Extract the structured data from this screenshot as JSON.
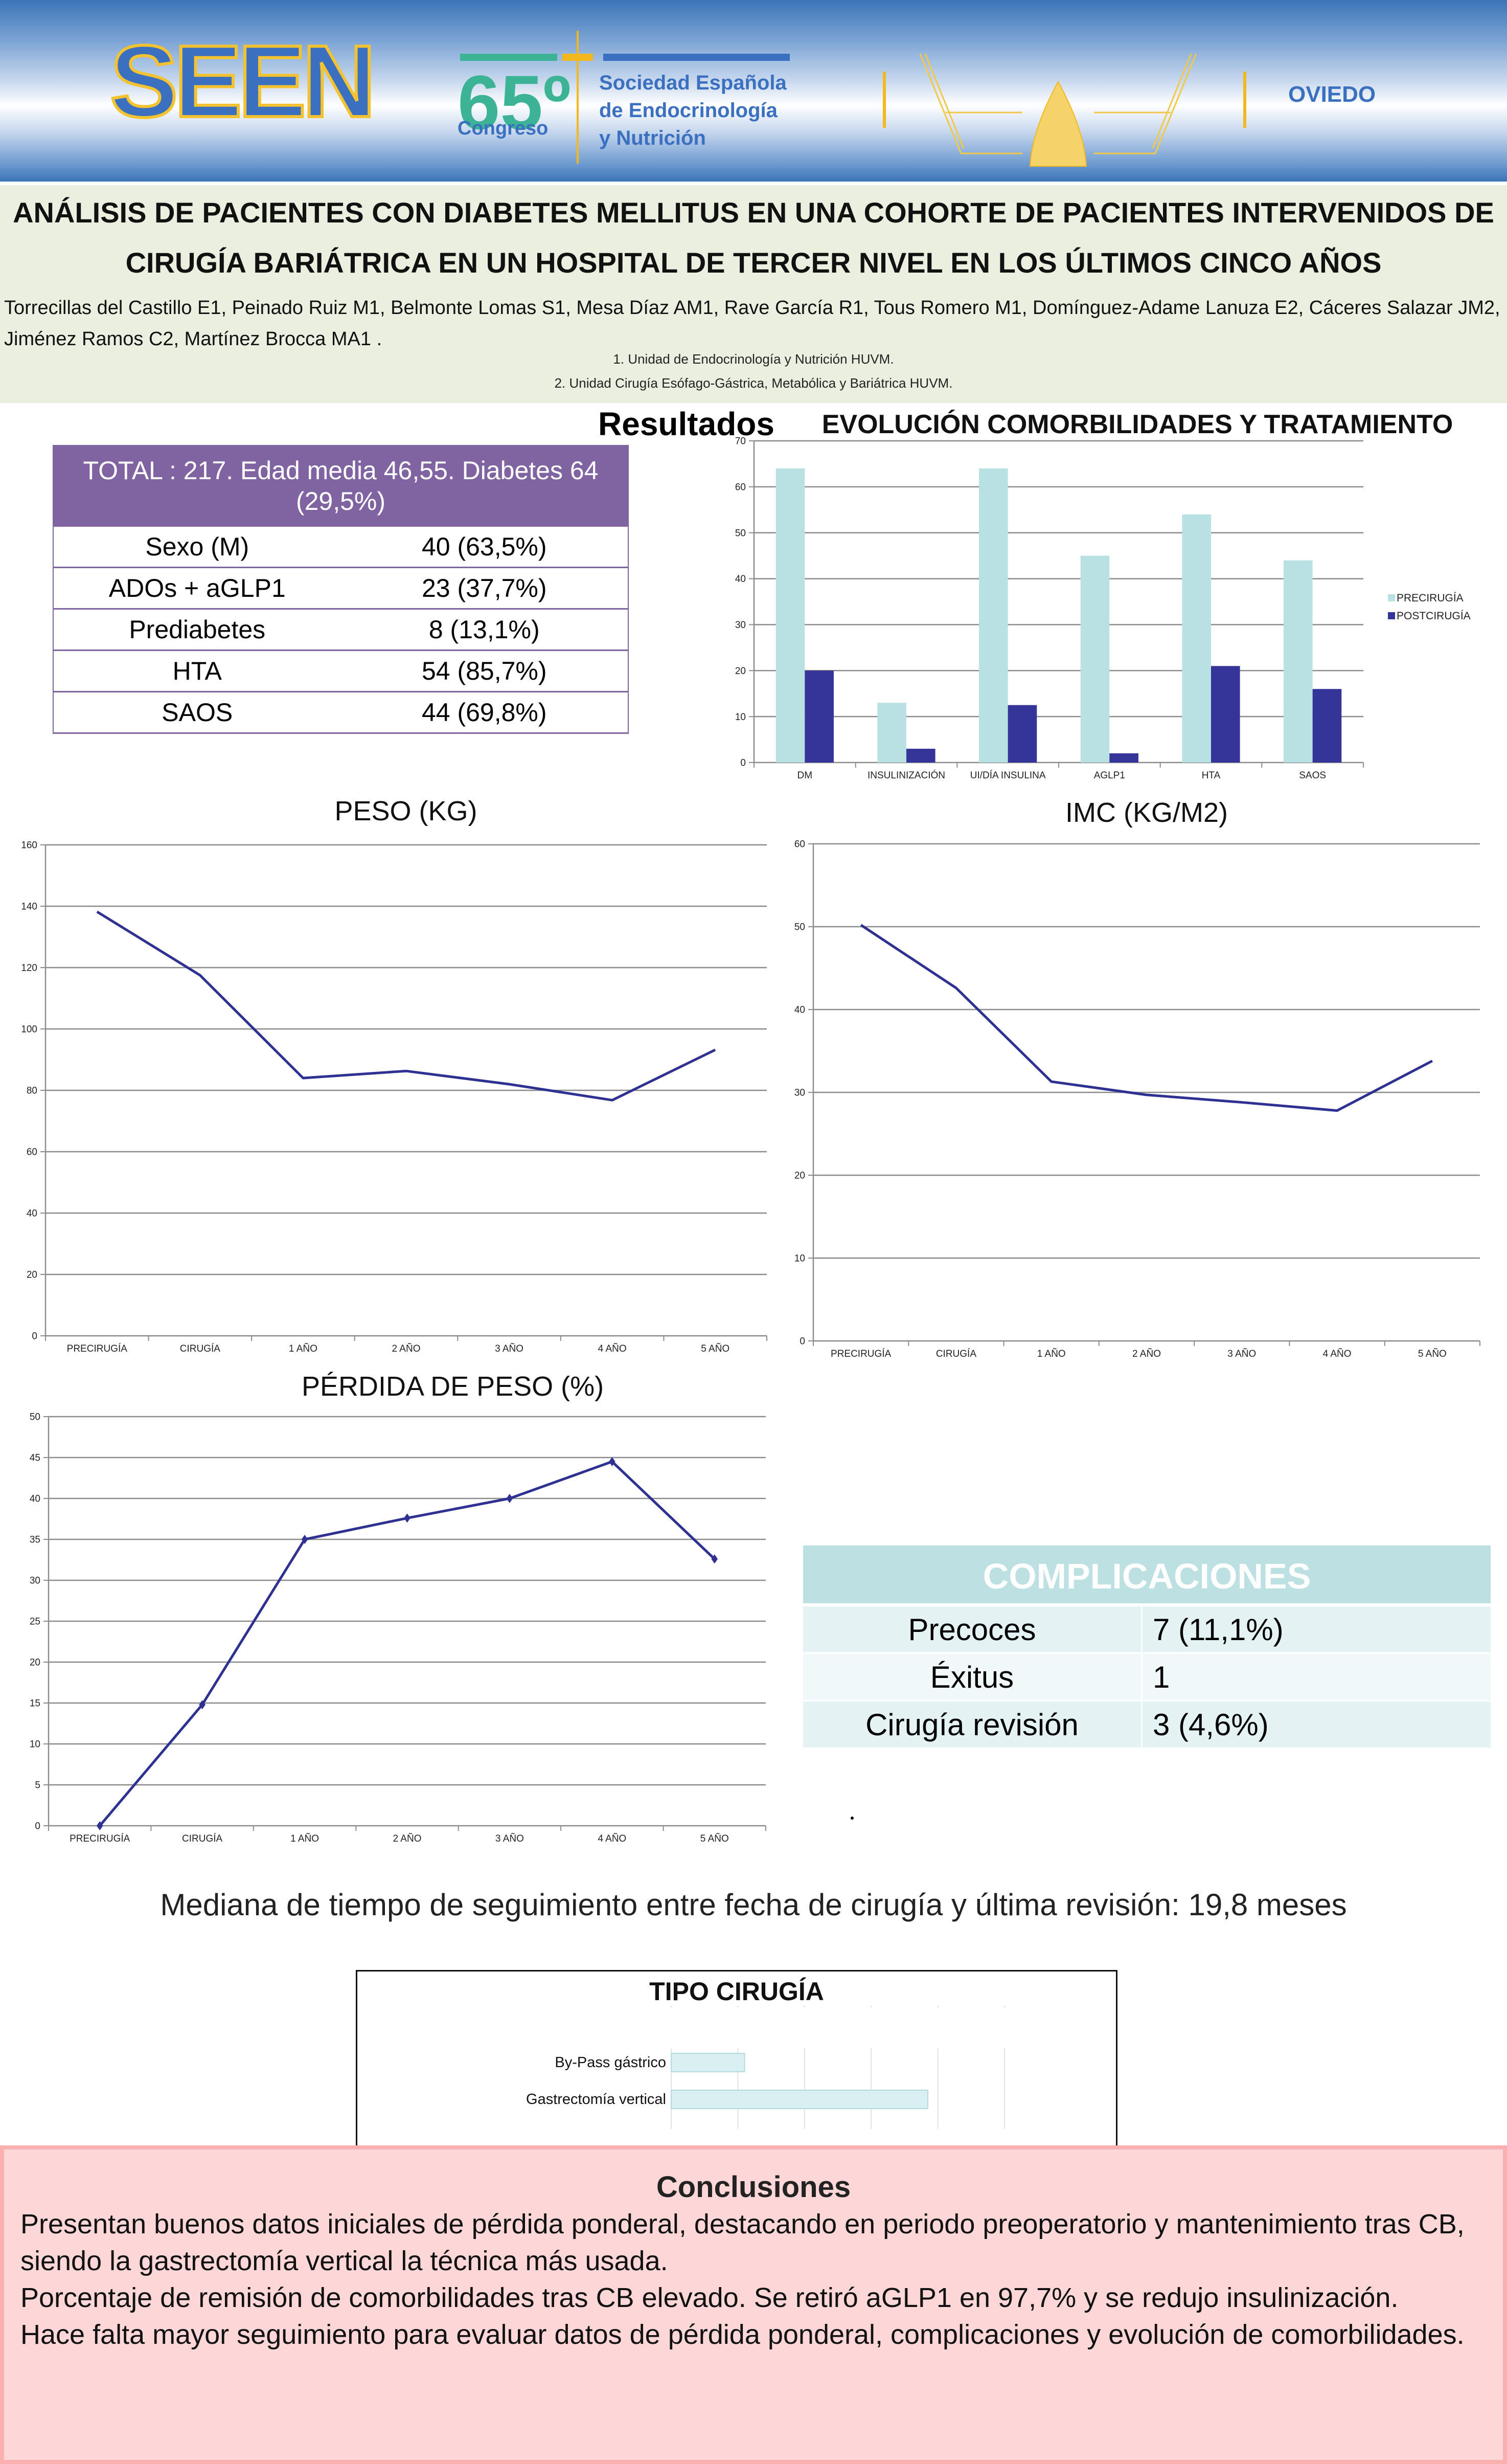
{
  "header": {
    "logo_sen_text": "SEEN",
    "congress_number": "65º",
    "congress_label": "Congreso",
    "society_lines": [
      "Sociedad Española",
      "de Endocrinología",
      "y Nutrición"
    ],
    "city": "OVIEDO",
    "colors": {
      "brand_blue": "#3b6fbf",
      "brand_green": "#3bb394",
      "brand_gold": "#f2b81e"
    }
  },
  "title": {
    "line1": "ANÁLISIS DE PACIENTES CON DIABETES MELLITUS EN UNA COHORTE DE PACIENTES INTERVENIDOS DE",
    "line2": "CIRUGÍA BARIÁTRICA EN UN HOSPITAL DE TERCER NIVEL EN LOS ÚLTIMOS CINCO AÑOS",
    "authors": "Torrecillas del Castillo E1, Peinado Ruiz M1, Belmonte Lomas S1, Mesa Díaz AM1, Rave García R1, Tous Romero M1, Domínguez-Adame Lanuza E2, Cáceres Salazar JM2, Jiménez Ramos C2, Martínez Brocca MA1 .",
    "affiliations": [
      "1. Unidad de Endocrinología y Nutrición HUVM.",
      "2. Unidad Cirugía Esófago-Gástrica, Metabólica y Bariátrica HUVM."
    ]
  },
  "results_heading": "Resultados",
  "summary_table": {
    "header": "TOTAL : 217. Edad media 46,55. Diabetes 64 (29,5%)",
    "rows": [
      {
        "label": "Sexo (M)",
        "value": "40 (63,5%)"
      },
      {
        "label": "ADOs + aGLP1",
        "value": "23 (37,7%)"
      },
      {
        "label": "Prediabetes",
        "value": "8 (13,1%)"
      },
      {
        "label": "HTA",
        "value": "54  (85,7%)"
      },
      {
        "label": "SAOS",
        "value": "44 (69,8%)"
      }
    ],
    "header_color": "#8064a2"
  },
  "chart_data": [
    {
      "id": "comorbilidades",
      "type": "bar",
      "title": "EVOLUCIÓN COMORBILIDADES Y TRATAMIENTO",
      "categories": [
        "DM",
        "INSULINIZACIÓN",
        "UI/DÍA INSULINA",
        "AGLP1",
        "HTA",
        "SAOS"
      ],
      "series": [
        {
          "name": "PRECIRUGÍA",
          "color": "#b9e0e3",
          "values": [
            64,
            13,
            64,
            45,
            54,
            44
          ]
        },
        {
          "name": "POSTCIRUGÍA",
          "color": "#343499",
          "values": [
            20,
            3,
            12.5,
            2,
            21,
            16
          ]
        }
      ],
      "ylim": [
        0,
        70
      ],
      "yticks": [
        0,
        10,
        20,
        30,
        40,
        50,
        60,
        70
      ],
      "grid": true,
      "legend": "right",
      "xlabel": "",
      "ylabel": ""
    },
    {
      "id": "peso",
      "type": "line",
      "title": "PESO (KG)",
      "categories": [
        "PRECIRUGÍA",
        "CIRUGÍA",
        "1 AÑO",
        "2 AÑO",
        "3 AÑO",
        "4 AÑO",
        "5 AÑO"
      ],
      "series": [
        {
          "name": "Peso",
          "color": "#2e3192",
          "values": [
            138.2,
            117.5,
            84,
            86.3,
            82,
            76.8,
            93.2
          ]
        }
      ],
      "ylim": [
        0,
        160
      ],
      "yticks": [
        0,
        20,
        40,
        60,
        80,
        100,
        120,
        140,
        160
      ],
      "grid": true,
      "markers": false,
      "xlabel": "",
      "ylabel": ""
    },
    {
      "id": "imc",
      "type": "line",
      "title": "IMC (KG/M2)",
      "categories": [
        "PRECIRUGÍA",
        "CIRUGÍA",
        "1 AÑO",
        "2 AÑO",
        "3 AÑO",
        "4 AÑO",
        "5 AÑO"
      ],
      "series": [
        {
          "name": "IMC",
          "color": "#2e3192",
          "values": [
            50.2,
            42.6,
            31.3,
            29.7,
            28.8,
            27.8,
            33.8
          ]
        }
      ],
      "ylim": [
        0,
        60
      ],
      "yticks": [
        0,
        10,
        20,
        30,
        40,
        50,
        60
      ],
      "grid": true,
      "markers": false,
      "xlabel": "",
      "ylabel": ""
    },
    {
      "id": "perdida",
      "type": "line",
      "title": "PÉRDIDA DE PESO (%)",
      "categories": [
        "PRECIRUGÍA",
        "CIRUGÍA",
        "1 AÑO",
        "2 AÑO",
        "3 AÑO",
        "4 AÑO",
        "5 AÑO"
      ],
      "series": [
        {
          "name": "Pérdida de peso",
          "color": "#2e3192",
          "values": [
            0,
            14.8,
            35,
            37.6,
            40,
            44.5,
            32.6
          ]
        }
      ],
      "ylim": [
        0,
        50
      ],
      "yticks": [
        0,
        5,
        10,
        15,
        20,
        25,
        30,
        35,
        40,
        45,
        50
      ],
      "grid": true,
      "markers": true,
      "xlabel": "",
      "ylabel": ""
    },
    {
      "id": "tipo_cirugia",
      "type": "bar",
      "orientation": "horizontal",
      "title": "TIPO CIRUGÍA",
      "categories": [
        "By-Pass gástrico",
        "Gastrectomía vertical"
      ],
      "series": [
        {
          "name": "Tipo cirugía",
          "color": "#d9eff1",
          "values": [
            1.1,
            3.85
          ]
        }
      ],
      "xlim": [
        0,
        5
      ],
      "tick_labels_visible": false,
      "grid": true,
      "xlabel": "",
      "ylabel": ""
    }
  ],
  "complicaciones": {
    "header": "COMPLICACIONES",
    "rows": [
      {
        "label": "Precoces",
        "value": "7 (11,1%)"
      },
      {
        "label": "Éxitus",
        "value": "1"
      },
      {
        "label": "Cirugía revisión",
        "value": "3 (4,6%)"
      }
    ],
    "header_color": "#bde0e3"
  },
  "stray_mark": ".",
  "mediana": "Mediana de tiempo de seguimiento entre fecha de cirugía y última revisión: 19,8 meses",
  "conclusiones": {
    "title": "Conclusiones",
    "paragraphs": [
      "Presentan buenos datos iniciales de pérdida ponderal, destacando en periodo preoperatorio y mantenimiento tras CB, siendo la gastrectomía vertical la técnica más usada.",
      "Porcentaje de remisión de comorbilidades tras CB elevado. Se retiró aGLP1 en 97,7% y se redujo insulinización.",
      "Hace falta mayor seguimiento para evaluar datos de pérdida ponderal, complicaciones y evolución de comorbilidades."
    ]
  }
}
